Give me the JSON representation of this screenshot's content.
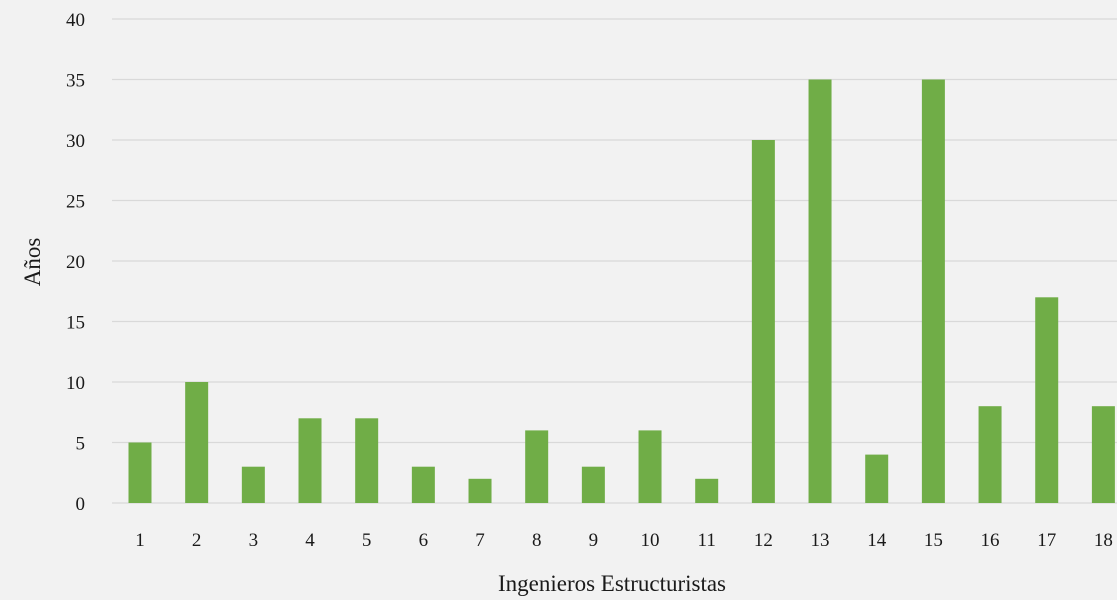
{
  "chart_data": {
    "type": "bar",
    "categories": [
      "1",
      "2",
      "3",
      "4",
      "5",
      "6",
      "7",
      "8",
      "9",
      "10",
      "11",
      "12",
      "13",
      "14",
      "15",
      "16",
      "17",
      "18"
    ],
    "values": [
      5,
      10,
      3,
      7,
      7,
      3,
      2,
      6,
      3,
      6,
      2,
      30,
      35,
      4,
      35,
      8,
      17,
      8
    ],
    "yticks": [
      "0",
      "5",
      "10",
      "15",
      "20",
      "25",
      "30",
      "35",
      "40"
    ],
    "ylim": [
      0,
      40
    ],
    "xlabel": "Ingenieros Estructuristas",
    "ylabel": "Años",
    "bar_color": "#70ad47",
    "grid": true,
    "background": "#f2f2f2"
  }
}
